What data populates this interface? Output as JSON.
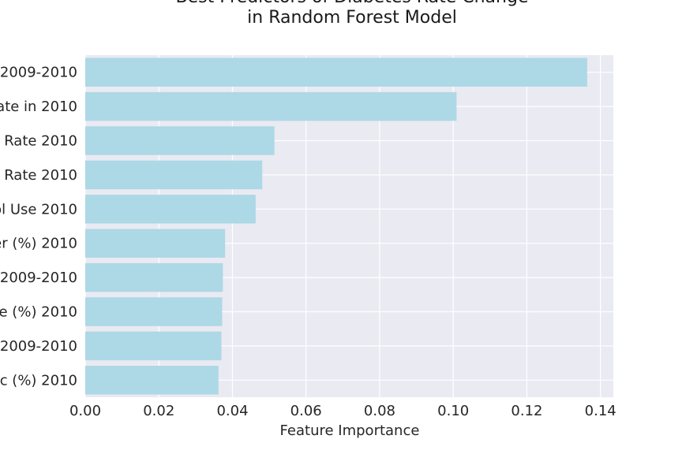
{
  "chart_data": {
    "type": "bar",
    "orientation": "horizontal",
    "title_lines": [
      "Best Predictors of Diabetes Rate Change",
      "in Random Forest Model"
    ],
    "xlabel": "Feature Importance",
    "ylabel": "",
    "xlim": [
      0.0,
      0.1435
    ],
    "xticks": [
      "0.00",
      "0.02",
      "0.04",
      "0.06",
      "0.08",
      "0.10",
      "0.12",
      "0.14"
    ],
    "categories": [
      "2009-2010",
      "ate in 2010",
      "Rate 2010",
      "Rate 2010",
      "ol Use 2010",
      "er (%) 2010",
      "2009-2010",
      "e (%) 2010",
      "2009-2010",
      "ic (%) 2010"
    ],
    "values": [
      0.1364,
      0.1009,
      0.0514,
      0.0481,
      0.0463,
      0.038,
      0.0374,
      0.0372,
      0.037,
      0.0362
    ],
    "grid": true,
    "colors": {
      "bar": "#add8e6",
      "plot_background": "#eaeaf2",
      "grid": "#ffffff",
      "text": "#262626"
    }
  }
}
